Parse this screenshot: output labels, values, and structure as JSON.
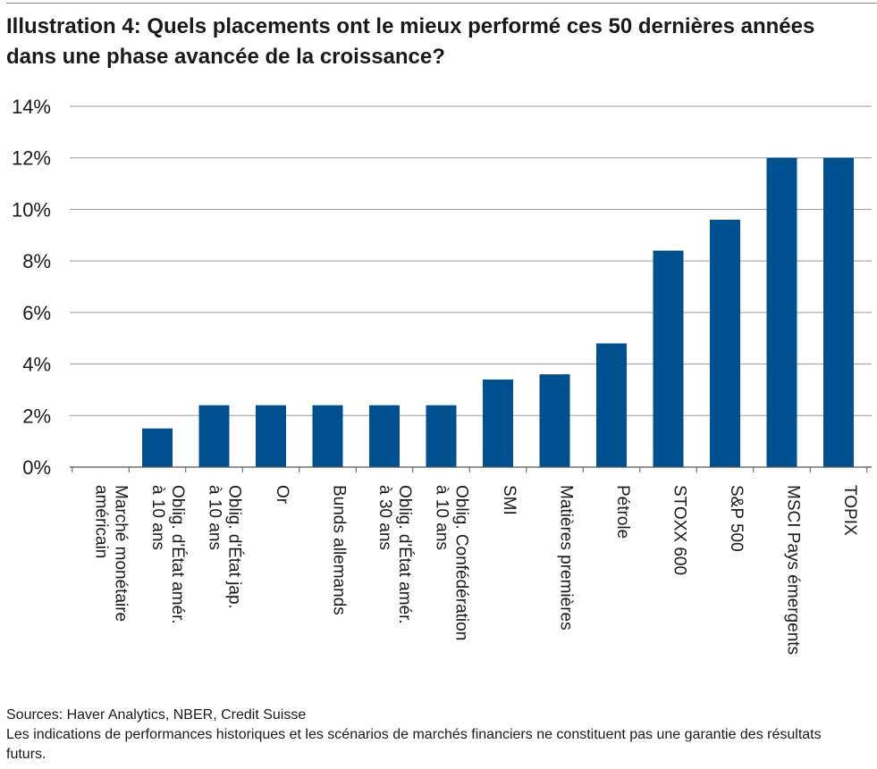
{
  "title": "Illustration 4: Quels placements ont le mieux performé ces 50 dernières années dans une phase avancée de la croissance?",
  "footer": {
    "sources": "Sources: Haver Analytics, NBER, Credit Suisse",
    "disclaimer": "Les indications de performances historiques et les scénarios de marchés financiers ne constituent pas une garantie des résultats futurs."
  },
  "colors": {
    "bar": "#00508F",
    "grid": "#9a9a9a",
    "axis": "#555555"
  },
  "chart_data": {
    "type": "bar",
    "title": "Illustration 4: Quels placements ont le mieux performé ces 50 dernières années dans une phase avancée de la croissance?",
    "xlabel": "",
    "ylabel": "",
    "ylim": [
      0,
      14
    ],
    "yticks": [
      0,
      2,
      4,
      6,
      8,
      10,
      12,
      14
    ],
    "ytick_labels": [
      "0%",
      "2%",
      "4%",
      "6%",
      "8%",
      "10%",
      "12%",
      "14%"
    ],
    "grid": "horizontal",
    "categories": [
      [
        "Marché monétaire",
        "américain"
      ],
      [
        "Oblig. d'État amér.",
        "à 10 ans"
      ],
      [
        "Oblig. d'État jap.",
        "à 10 ans"
      ],
      [
        "Or"
      ],
      [
        "Bunds allemands"
      ],
      [
        "Oblig. d'État amér.",
        "à 30 ans"
      ],
      [
        "Oblig. Confédération",
        "à 10 ans"
      ],
      [
        "SMI"
      ],
      [
        "Matières premières"
      ],
      [
        "Pétrole"
      ],
      [
        "STOXX 600"
      ],
      [
        "S&P 500"
      ],
      [
        "MSCI Pays émergents"
      ],
      [
        "TOPIX"
      ]
    ],
    "values": [
      0,
      1.5,
      2.4,
      2.4,
      2.4,
      2.4,
      2.4,
      3.4,
      3.6,
      4.8,
      8.4,
      9.6,
      12.0,
      12.0
    ]
  }
}
